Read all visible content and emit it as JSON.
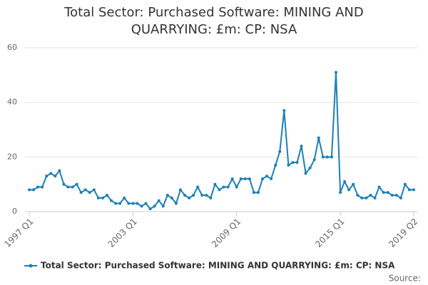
{
  "chart_data": {
    "type": "line",
    "title": "Total Sector: Purchased Software: MINING AND QUARRYING: £m: CP: NSA",
    "source": "Source:",
    "categories": [
      "1997 Q1",
      null,
      null,
      null,
      null,
      null,
      null,
      null,
      null,
      null,
      null,
      null,
      null,
      null,
      null,
      null,
      null,
      null,
      null,
      null,
      null,
      null,
      null,
      null,
      "2003 Q1",
      null,
      null,
      null,
      null,
      null,
      null,
      null,
      null,
      null,
      null,
      null,
      null,
      null,
      null,
      null,
      null,
      null,
      null,
      null,
      null,
      null,
      null,
      null,
      "2009 Q1",
      null,
      null,
      null,
      null,
      null,
      null,
      null,
      null,
      null,
      null,
      null,
      null,
      null,
      null,
      null,
      null,
      null,
      null,
      null,
      null,
      null,
      null,
      null,
      "2015 Q1",
      null,
      null,
      null,
      null,
      null,
      null,
      null,
      null,
      null,
      null,
      null,
      null,
      null,
      null,
      null,
      null,
      "2019 Q2"
    ],
    "series": [
      {
        "name": "Total Sector: Purchased Software: MINING AND QUARRYING: £m: CP: NSA",
        "color": "#1a80b6",
        "values": [
          8,
          8,
          9,
          9,
          13,
          14,
          13,
          15,
          10,
          9,
          9,
          10,
          7,
          8,
          7,
          8,
          5,
          5,
          6,
          4,
          3,
          3,
          5,
          3,
          3,
          3,
          2,
          3,
          1,
          2,
          4,
          2,
          6,
          5,
          3,
          8,
          6,
          5,
          6,
          9,
          6,
          6,
          5,
          10,
          8,
          9,
          9,
          12,
          9,
          12,
          12,
          12,
          7,
          7,
          12,
          13,
          12,
          17,
          22,
          37,
          17,
          18,
          18,
          24,
          14,
          16,
          19,
          27,
          20,
          20,
          20,
          51,
          7,
          11,
          8,
          10,
          6,
          5,
          5,
          6,
          5,
          9,
          7,
          7,
          6,
          6,
          5,
          10,
          8,
          8
        ]
      }
    ],
    "ylim": [
      0,
      60
    ],
    "yticks": [
      0,
      20,
      40,
      60
    ],
    "grid": true,
    "legend": "bottom"
  }
}
